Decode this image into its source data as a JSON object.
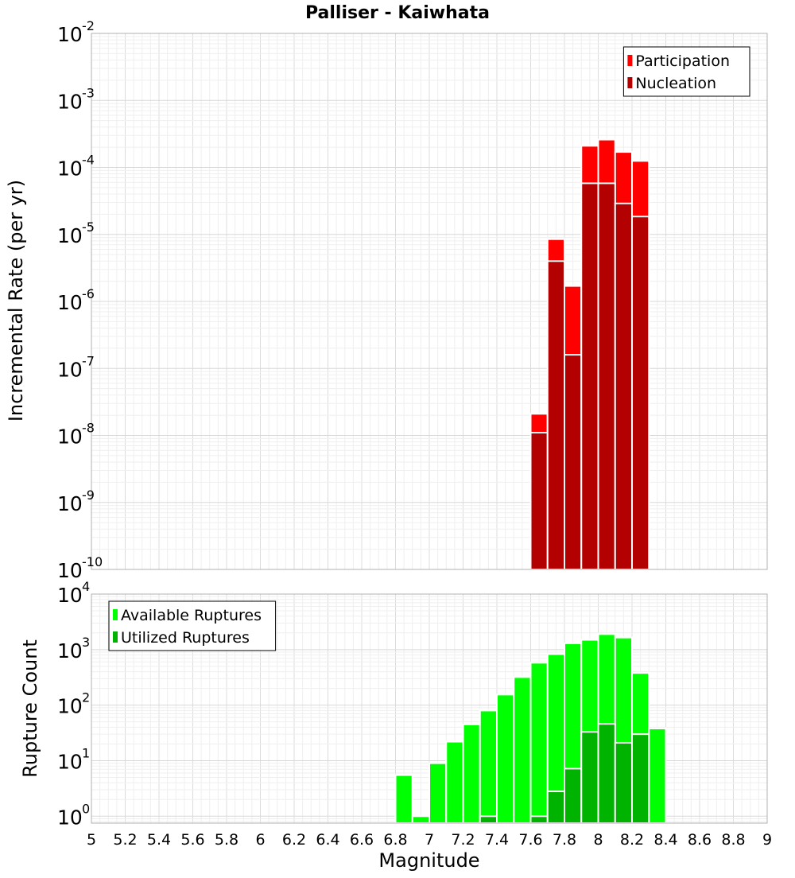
{
  "chart_data": [
    {
      "type": "bar",
      "title": "Palliser - Kaiwhata",
      "xlabel": "",
      "ylabel": "Incremental Rate (per yr)",
      "yscale": "log",
      "ylim": [
        1e-10,
        0.01
      ],
      "xlim": [
        5,
        9
      ],
      "y_tick_exponents": [
        -10,
        -9,
        -8,
        -7,
        -6,
        -5,
        -4,
        -3,
        -2
      ],
      "bin_width": 0.1,
      "legend_position": "top-right",
      "series": [
        {
          "name": "Participation",
          "color": "#ff0000",
          "x": [
            7.65,
            7.75,
            7.85,
            7.95,
            8.05,
            8.15,
            8.25
          ],
          "values": [
            2.1e-08,
            8.5e-06,
            1.7e-06,
            0.00021,
            0.00026,
            0.00017,
            0.000125
          ]
        },
        {
          "name": "Nucleation",
          "color": "#b30000",
          "x": [
            7.65,
            7.75,
            7.85,
            7.95,
            8.05,
            8.15,
            8.25
          ],
          "values": [
            1.1e-08,
            4e-06,
            1.6e-07,
            5.8e-05,
            5.8e-05,
            2.9e-05,
            1.85e-05
          ]
        }
      ],
      "grid": true
    },
    {
      "type": "bar",
      "xlabel": "Magnitude",
      "ylabel": "Rupture Count",
      "yscale": "log",
      "ylim": [
        0.75,
        10000
      ],
      "xlim": [
        5,
        9
      ],
      "y_tick_exponents": [
        0,
        1,
        2,
        3,
        4
      ],
      "x_ticks": [
        "5",
        "5.2",
        "5.4",
        "5.6",
        "5.8",
        "6",
        "6.2",
        "6.4",
        "6.6",
        "6.8",
        "7",
        "7.2",
        "7.4",
        "7.6",
        "7.8",
        "8",
        "8.2",
        "8.4",
        "8.6",
        "8.8",
        "9"
      ],
      "bin_width": 0.1,
      "legend_position": "top-left",
      "series": [
        {
          "name": "Available Ruptures",
          "color": "#00ff00",
          "x": [
            6.85,
            6.95,
            7.05,
            7.15,
            7.25,
            7.35,
            7.45,
            7.55,
            7.65,
            7.75,
            7.85,
            7.95,
            8.05,
            8.15,
            8.25,
            8.35
          ],
          "values": [
            5.5,
            1,
            9,
            22,
            45,
            80,
            155,
            320,
            580,
            830,
            1300,
            1500,
            1900,
            1650,
            380,
            38
          ]
        },
        {
          "name": "Utilized Ruptures",
          "color": "#00b300",
          "x": [
            7.35,
            7.65,
            7.75,
            7.85,
            7.95,
            8.05,
            8.15,
            8.25
          ],
          "values": [
            1,
            1,
            2.8,
            7.2,
            33,
            46,
            21,
            30
          ]
        }
      ],
      "grid": true
    }
  ]
}
